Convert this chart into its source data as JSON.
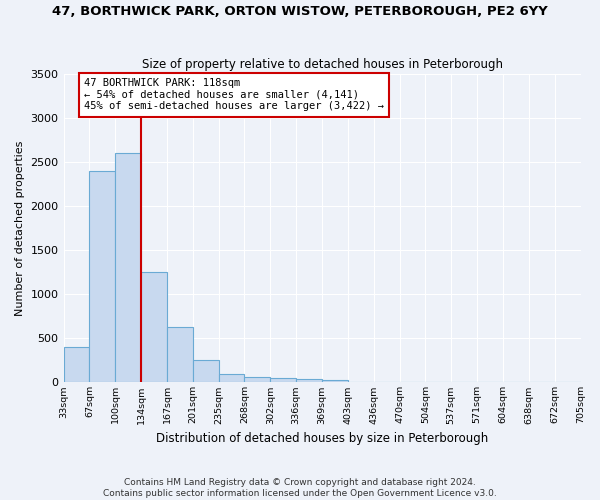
{
  "title": "47, BORTHWICK PARK, ORTON WISTOW, PETERBOROUGH, PE2 6YY",
  "subtitle": "Size of property relative to detached houses in Peterborough",
  "xlabel": "Distribution of detached houses by size in Peterborough",
  "ylabel": "Number of detached properties",
  "footer_line1": "Contains HM Land Registry data © Crown copyright and database right 2024.",
  "footer_line2": "Contains public sector information licensed under the Open Government Licence v3.0.",
  "annotation_line1": "47 BORTHWICK PARK: 118sqm",
  "annotation_line2": "← 54% of detached houses are smaller (4,141)",
  "annotation_line3": "45% of semi-detached houses are larger (3,422) →",
  "bar_color": "#c8d9ef",
  "bar_edge_color": "#6aaad4",
  "red_line_color": "#cc0000",
  "background_color": "#eef2f9",
  "grid_color": "#ffffff",
  "bins": [
    "33sqm",
    "67sqm",
    "100sqm",
    "134sqm",
    "167sqm",
    "201sqm",
    "235sqm",
    "268sqm",
    "302sqm",
    "336sqm",
    "369sqm",
    "403sqm",
    "436sqm",
    "470sqm",
    "504sqm",
    "537sqm",
    "571sqm",
    "604sqm",
    "638sqm",
    "672sqm",
    "705sqm"
  ],
  "values": [
    400,
    2400,
    2600,
    1250,
    630,
    250,
    100,
    60,
    55,
    40,
    30,
    0,
    0,
    0,
    0,
    0,
    0,
    0,
    0,
    0
  ],
  "red_line_x": 2.5,
  "ylim": [
    0,
    3500
  ],
  "yticks": [
    0,
    500,
    1000,
    1500,
    2000,
    2500,
    3000,
    3500
  ]
}
